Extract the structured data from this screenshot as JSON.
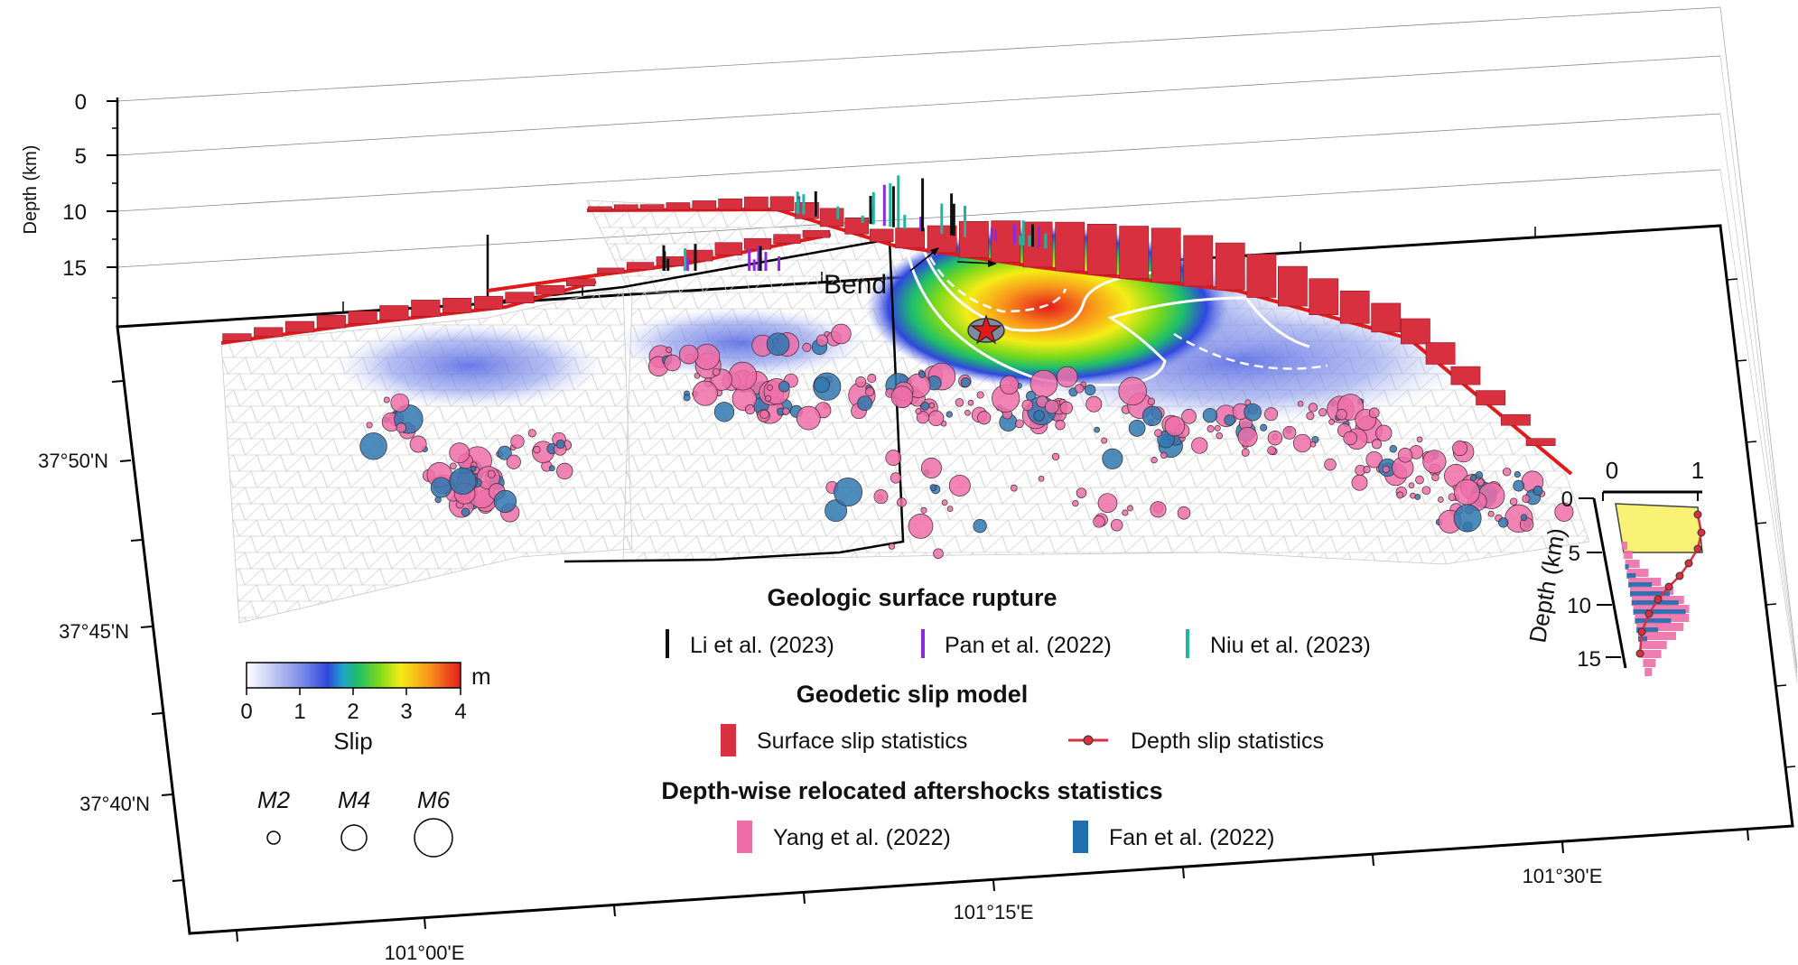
{
  "depth_axis": {
    "title": "Depth (km)",
    "ticks": [
      "0",
      "5",
      "10",
      "15"
    ]
  },
  "lat_labels": [
    "37°50'N",
    "37°45'N",
    "37°40'N"
  ],
  "lon_labels": [
    "101°00'E",
    "101°15'E",
    "101°30'E"
  ],
  "annotation_bend": "Bend",
  "colorbar": {
    "unit": "m",
    "title": "Slip",
    "ticks": [
      "0",
      "1",
      "2",
      "3",
      "4"
    ],
    "colors": [
      "#ffffff",
      "#dfe3f8",
      "#c3cbf3",
      "#a5b1ee",
      "#8796ea",
      "#6b7de6",
      "#4f62e2",
      "#2f47df",
      "#1f6fd8",
      "#1fa5c8",
      "#1ebf6a",
      "#2dd12a",
      "#7ad91a",
      "#c6e313",
      "#f5ec16",
      "#f8c318",
      "#f8961a",
      "#f56a1c",
      "#ef3a1e",
      "#e51c1c"
    ]
  },
  "magnitude_legend": {
    "items": [
      "M2",
      "M4",
      "M6"
    ]
  },
  "legend": {
    "geologic_title": "Geologic surface rupture",
    "geologic_items": [
      {
        "label": "Li et al. (2023)",
        "color": "#111111"
      },
      {
        "label": "Pan et al. (2022)",
        "color": "#8a2be2"
      },
      {
        "label": "Niu et al. (2023)",
        "color": "#1fb5a0"
      }
    ],
    "geodetic_title": "Geodetic slip model",
    "geodetic_items": [
      {
        "label": "Surface slip statistics",
        "color": "#d9303f"
      },
      {
        "label": "Depth slip statistics",
        "color": "#d9303f"
      }
    ],
    "aftershock_title": "Depth-wise relocated aftershocks statistics",
    "aftershock_items": [
      {
        "label": "Yang et al. (2022)",
        "color": "#ee6fa8"
      },
      {
        "label": "Fan et al. (2022)",
        "color": "#1f6fb0"
      }
    ]
  },
  "inset": {
    "ylabel": "Depth (km)",
    "xticks": [
      "0",
      "1"
    ],
    "yticks": [
      "0",
      "5",
      "10",
      "15"
    ]
  },
  "colors": {
    "fault_trace": "#e31a1c",
    "surface_slip": "#d9303f",
    "aftershock_yang": "#ee6fa8",
    "aftershock_fan": "#2f78b0",
    "epicenter": "#e31a1c"
  }
}
